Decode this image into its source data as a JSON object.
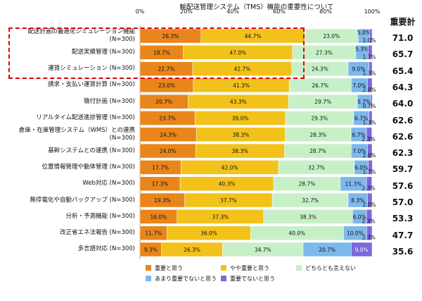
{
  "chart_data": {
    "type": "stacked-bar-horizontal",
    "title": "輸配送管理システム（TMS）機能の重要性について",
    "total_header": "重要計",
    "x_ticks": [
      "0%",
      "20%",
      "40%",
      "60%",
      "80%",
      "100%"
    ],
    "xlim": [
      0,
      100
    ],
    "series": [
      {
        "name": "重要と思う",
        "color": "#e8851b"
      },
      {
        "name": "やや重要と思う",
        "color": "#f2c21b"
      },
      {
        "name": "どちらとも言えない",
        "color": "#c8f0c8"
      },
      {
        "name": "あまり重要でないと思う",
        "color": "#7db8ec"
      },
      {
        "name": "重要でないと思う",
        "color": "#7b68d9"
      }
    ],
    "rows": [
      {
        "label": [
          "配送計画の最適化シミュレーション機能",
          "(N=300)"
        ],
        "values": [
          26.3,
          44.7,
          23.0,
          5.0,
          1.0
        ],
        "total": "71.0"
      },
      {
        "label": [
          "配送実績管理 (N=300)"
        ],
        "values": [
          18.7,
          47.0,
          27.3,
          5.3,
          1.7
        ],
        "total": "65.7"
      },
      {
        "label": [
          "運賃シミュレーション (N=300)"
        ],
        "values": [
          22.7,
          42.7,
          24.3,
          9.0,
          1.3
        ],
        "total": "65.4"
      },
      {
        "label": [
          "請求・支払い運賃計算 (N=300)"
        ],
        "values": [
          23.0,
          41.3,
          26.7,
          7.0,
          2.0
        ],
        "total": "64.3"
      },
      {
        "label": [
          "積付計画 (N=300)"
        ],
        "values": [
          20.7,
          43.3,
          29.7,
          5.7,
          0.7
        ],
        "total": "64.0"
      },
      {
        "label": [
          "リアルタイム配送進捗管理 (N=300)"
        ],
        "values": [
          23.7,
          39.0,
          29.3,
          6.7,
          1.3
        ],
        "total": "62.6"
      },
      {
        "label": [
          "倉庫・在庫管理システム（WMS）との連携",
          "(N=300)"
        ],
        "values": [
          24.3,
          38.3,
          28.3,
          6.7,
          2.3
        ],
        "total": "62.6"
      },
      {
        "label": [
          "基幹システムとの連携 (N=300)"
        ],
        "values": [
          24.0,
          38.3,
          28.7,
          7.0,
          2.0
        ],
        "total": "62.3"
      },
      {
        "label": [
          "位置情報管理や動体管理 (N=300)"
        ],
        "values": [
          17.7,
          42.0,
          32.7,
          6.0,
          1.7
        ],
        "total": "59.7"
      },
      {
        "label": [
          "Web対応 (N=300)"
        ],
        "values": [
          17.3,
          40.3,
          28.7,
          11.3,
          2.3
        ],
        "total": "57.6"
      },
      {
        "label": [
          "無停電化や自動バックアップ (N=300)"
        ],
        "values": [
          19.3,
          37.7,
          32.7,
          8.3,
          2.0
        ],
        "total": "57.0"
      },
      {
        "label": [
          "分析・予測機能 (N=300)"
        ],
        "values": [
          16.0,
          37.3,
          38.3,
          6.0,
          2.3
        ],
        "total": "53.3"
      },
      {
        "label": [
          "改正省エネ法報告 (N=300)"
        ],
        "values": [
          11.7,
          36.0,
          40.0,
          10.0,
          2.3
        ],
        "total": "47.7"
      },
      {
        "label": [
          "多言語対応 (N=300)"
        ],
        "values": [
          9.3,
          26.3,
          34.7,
          20.7,
          9.0
        ],
        "total": "35.6"
      }
    ],
    "highlight_rows": [
      0,
      1,
      2
    ]
  }
}
